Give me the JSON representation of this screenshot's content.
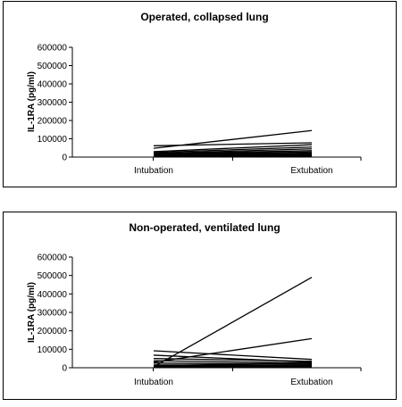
{
  "chart_data": [
    {
      "type": "line",
      "title": "Operated, collapsed lung",
      "ylabel": "IL-1RA  (pg/ml)",
      "xlabel": "",
      "categories": [
        "Intubation",
        "Extubation"
      ],
      "ylim": [
        0,
        600000
      ],
      "yticks": [
        "0",
        "100000",
        "200000",
        "300000",
        "400000",
        "500000",
        "600000"
      ],
      "grid": false,
      "series": [
        {
          "values": [
            48000,
            145000
          ]
        },
        {
          "values": [
            62000,
            78000
          ]
        },
        {
          "values": [
            30000,
            68000
          ]
        },
        {
          "values": [
            25000,
            55000
          ]
        },
        {
          "values": [
            20000,
            45000
          ]
        },
        {
          "values": [
            18000,
            35000
          ]
        },
        {
          "values": [
            15000,
            28000
          ]
        },
        {
          "values": [
            12000,
            22000
          ]
        },
        {
          "values": [
            10000,
            18000
          ]
        },
        {
          "values": [
            8000,
            14000
          ]
        },
        {
          "values": [
            6000,
            10000
          ]
        },
        {
          "values": [
            5000,
            8000
          ]
        },
        {
          "values": [
            4000,
            6000
          ]
        },
        {
          "values": [
            3000,
            4000
          ]
        }
      ]
    },
    {
      "type": "line",
      "title": "Non-operated, ventilated lung",
      "ylabel": "IL-1RA  (pg/ml)",
      "xlabel": "",
      "categories": [
        "Intubation",
        "Extubation"
      ],
      "ylim": [
        0,
        600000
      ],
      "yticks": [
        "0",
        "100000",
        "200000",
        "300000",
        "400000",
        "500000",
        "600000"
      ],
      "grid": false,
      "series": [
        {
          "values": [
            5000,
            490000
          ]
        },
        {
          "values": [
            30000,
            158000
          ]
        },
        {
          "values": [
            92000,
            45000
          ]
        },
        {
          "values": [
            68000,
            30000
          ]
        },
        {
          "values": [
            50000,
            35000
          ]
        },
        {
          "values": [
            38000,
            25000
          ]
        },
        {
          "values": [
            25000,
            20000
          ]
        },
        {
          "values": [
            15000,
            15000
          ]
        },
        {
          "values": [
            10000,
            28000
          ]
        },
        {
          "values": [
            8000,
            12000
          ]
        },
        {
          "values": [
            5000,
            8000
          ]
        },
        {
          "values": [
            3000,
            5000
          ]
        }
      ]
    }
  ]
}
